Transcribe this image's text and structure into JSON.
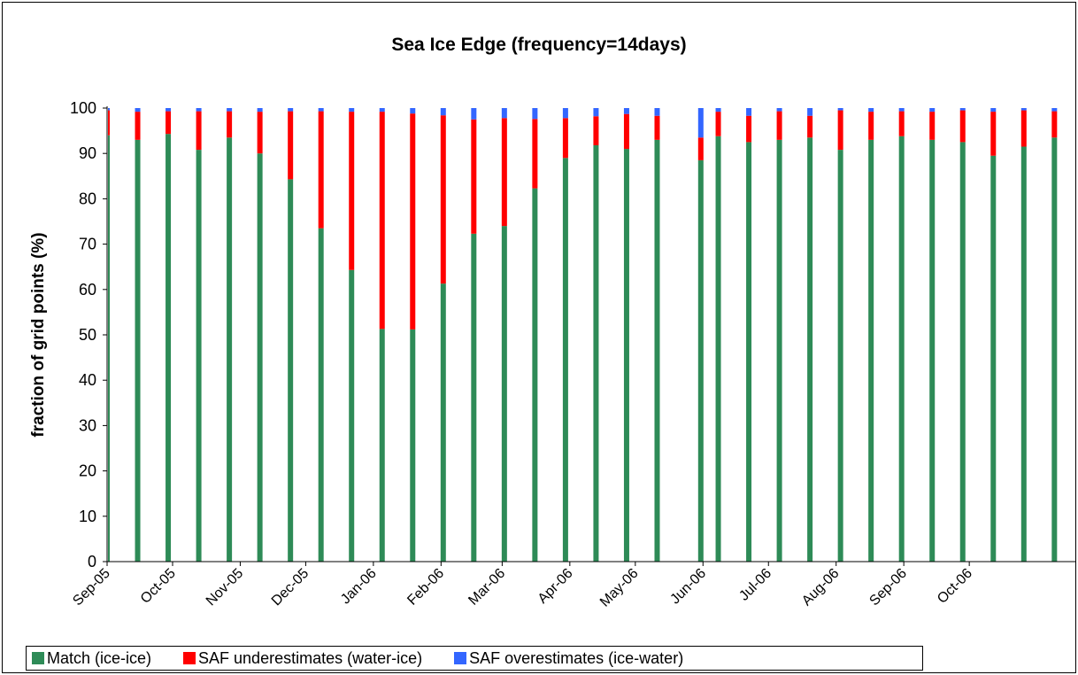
{
  "chart_data": {
    "type": "bar",
    "stacked": true,
    "title": "Sea Ice Edge (frequency=14days)",
    "xlabel": "",
    "ylabel": "fraction of grid points (%)",
    "ylim": [
      0,
      100
    ],
    "yticks": [
      0,
      10,
      20,
      30,
      40,
      50,
      60,
      70,
      80,
      90,
      100
    ],
    "xtick_labels": [
      "Sep-05",
      "Oct-05",
      "Nov-05",
      "Dec-05",
      "Jan-06",
      "Feb-06",
      "Mar-06",
      "Apr-06",
      "May-06",
      "Jun-06",
      "Jul-06",
      "Aug-06",
      "Sep-06",
      "Oct-06"
    ],
    "x_domain": [
      "2005-09-01",
      "2006-11-19"
    ],
    "grid": false,
    "legend_position": "bottom",
    "x": [
      "2005-09-01",
      "2005-09-15",
      "2005-09-29",
      "2005-10-13",
      "2005-10-27",
      "2005-11-10",
      "2005-11-24",
      "2005-12-08",
      "2005-12-22",
      "2006-01-05",
      "2006-01-19",
      "2006-02-02",
      "2006-02-16",
      "2006-03-02",
      "2006-03-16",
      "2006-03-30",
      "2006-04-13",
      "2006-04-27",
      "2006-05-11",
      "2006-05-31",
      "2006-06-08",
      "2006-06-22",
      "2006-07-06",
      "2006-07-20",
      "2006-08-03",
      "2006-08-17",
      "2006-08-31",
      "2006-09-14",
      "2006-09-28",
      "2006-10-12",
      "2006-10-26",
      "2006-11-09"
    ],
    "series": [
      {
        "name": "Match (ice-ice)",
        "color": "#2e8b57",
        "values": [
          94.0,
          93.0,
          94.3,
          90.8,
          93.5,
          90.0,
          84.3,
          73.5,
          64.3,
          51.3,
          51.2,
          61.3,
          72.3,
          74.0,
          82.3,
          89.0,
          91.8,
          91.0,
          93.0,
          88.5,
          93.8,
          92.5,
          93.0,
          93.5,
          90.8,
          93.0,
          93.8,
          93.0,
          92.5,
          89.5,
          91.5,
          93.5
        ]
      },
      {
        "name": "SAF underestimates (water-ice)",
        "color": "#ff0000",
        "values": [
          5.5,
          6.2,
          5.0,
          8.5,
          5.8,
          9.2,
          15.0,
          25.8,
          34.9,
          47.9,
          47.6,
          37.1,
          25.2,
          23.8,
          15.3,
          8.8,
          6.4,
          7.7,
          5.3,
          5.0,
          5.4,
          5.8,
          6.3,
          4.8,
          8.7,
          6.2,
          5.5,
          6.2,
          7.0,
          9.7,
          8.0,
          5.8
        ]
      },
      {
        "name": "SAF overestimates (ice-water)",
        "color": "#3366ff",
        "values": [
          0.5,
          0.8,
          0.7,
          0.7,
          0.7,
          0.8,
          0.7,
          0.7,
          0.8,
          0.8,
          1.2,
          1.6,
          2.5,
          2.2,
          2.4,
          2.2,
          1.8,
          1.3,
          1.7,
          6.5,
          0.8,
          1.7,
          0.7,
          1.7,
          0.5,
          0.8,
          0.7,
          0.8,
          0.5,
          0.8,
          0.5,
          0.7
        ]
      }
    ]
  }
}
